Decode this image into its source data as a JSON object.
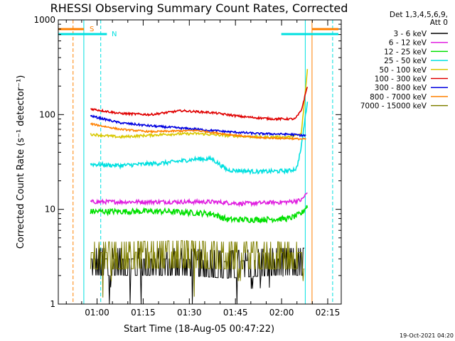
{
  "chart_data": {
    "type": "line",
    "title": "RHESSI Observing Summary Count Rates, Corrected",
    "xlabel": "Start Time (18-Aug-05 00:47:22)",
    "ylabel": "Corrected Count Rate (s⁻¹ detector⁻¹)",
    "yscale": "log",
    "ylim": [
      1,
      1000
    ],
    "xlim_minutes_after_start": [
      0,
      92
    ],
    "xticks": [
      {
        "label": "01:00",
        "min": 12.6
      },
      {
        "label": "01:15",
        "min": 27.6
      },
      {
        "label": "01:30",
        "min": 42.6
      },
      {
        "label": "01:45",
        "min": 57.6
      },
      {
        "label": "02:00",
        "min": 72.6
      },
      {
        "label": "02:15",
        "min": 87.6
      }
    ],
    "yticks": [
      {
        "label": "1",
        "value": 1
      },
      {
        "label": "10",
        "value": 10
      },
      {
        "label": "100",
        "value": 100
      },
      {
        "label": "1000",
        "value": 1000
      }
    ],
    "legend_title": [
      "Det 1,3,4,5,6,9,",
      "Att 0"
    ],
    "legend": [
      {
        "label": "3 - 6 keV",
        "color": "#000000"
      },
      {
        "label": "6 - 12 keV",
        "color": "#e020e0"
      },
      {
        "label": "12 - 25 keV",
        "color": "#00e000"
      },
      {
        "label": "25 - 50 keV",
        "color": "#00e0e0"
      },
      {
        "label": "50 - 100 keV",
        "color": "#d8c800"
      },
      {
        "label": "100 - 300 keV",
        "color": "#e00000"
      },
      {
        "label": "300 - 800 keV",
        "color": "#0000e0"
      },
      {
        "label": "800 - 7000 keV",
        "color": "#ff8000"
      },
      {
        "label": "7000 - 15000 keV",
        "color": "#808000"
      }
    ],
    "flags": [
      {
        "label": "S",
        "color": "#ff8000"
      },
      {
        "label": "N",
        "color": "#00e0e0"
      }
    ],
    "series": [
      {
        "name": "3 - 6 keV",
        "color": "#000000",
        "noise": 0.45,
        "points": [
          [
            10.5,
            3
          ],
          [
            20,
            3
          ],
          [
            40,
            3
          ],
          [
            55,
            2.8
          ],
          [
            70,
            3
          ],
          [
            80,
            3
          ]
        ]
      },
      {
        "name": "6 - 12 keV",
        "color": "#e020e0",
        "noise": 0.05,
        "points": [
          [
            10.5,
            12
          ],
          [
            20,
            12
          ],
          [
            40,
            12
          ],
          [
            50,
            12
          ],
          [
            60,
            11.5
          ],
          [
            75,
            12
          ],
          [
            79,
            12.5
          ],
          [
            81,
            15
          ]
        ]
      },
      {
        "name": "12 - 25 keV",
        "color": "#00e000",
        "noise": 0.07,
        "points": [
          [
            10.5,
            9.5
          ],
          [
            20,
            9.5
          ],
          [
            35,
            9.5
          ],
          [
            50,
            9
          ],
          [
            55,
            7.8
          ],
          [
            65,
            7.8
          ],
          [
            75,
            8
          ],
          [
            79,
            9
          ],
          [
            81,
            11
          ]
        ]
      },
      {
        "name": "25 - 50 keV",
        "color": "#00e0e0",
        "noise": 0.05,
        "points": [
          [
            10.5,
            30
          ],
          [
            20,
            29
          ],
          [
            35,
            31
          ],
          [
            45,
            34
          ],
          [
            50,
            34
          ],
          [
            55,
            26
          ],
          [
            65,
            25
          ],
          [
            75,
            25.5
          ],
          [
            77.5,
            27
          ],
          [
            79,
            45
          ],
          [
            81,
            140
          ]
        ]
      },
      {
        "name": "50 - 100 keV",
        "color": "#d8c800",
        "noise": 0.03,
        "points": [
          [
            10.5,
            62
          ],
          [
            20,
            58
          ],
          [
            35,
            62
          ],
          [
            45,
            63
          ],
          [
            55,
            60
          ],
          [
            65,
            58
          ],
          [
            75,
            58
          ],
          [
            79,
            62
          ],
          [
            81,
            300
          ]
        ]
      },
      {
        "name": "100 - 300 keV",
        "color": "#e00000",
        "noise": 0.025,
        "points": [
          [
            10.5,
            115
          ],
          [
            20,
            103
          ],
          [
            30,
            100
          ],
          [
            40,
            110
          ],
          [
            50,
            105
          ],
          [
            60,
            95
          ],
          [
            70,
            90
          ],
          [
            77,
            90
          ],
          [
            79,
            110
          ],
          [
            81,
            200
          ]
        ]
      },
      {
        "name": "300 - 800 keV",
        "color": "#0000e0",
        "noise": 0.025,
        "points": [
          [
            10.5,
            97
          ],
          [
            20,
            82
          ],
          [
            30,
            76
          ],
          [
            45,
            70
          ],
          [
            55,
            66
          ],
          [
            65,
            63
          ],
          [
            75,
            62
          ],
          [
            80.5,
            60
          ]
        ]
      },
      {
        "name": "800 - 7000 keV",
        "color": "#ff8000",
        "noise": 0.02,
        "points": [
          [
            10.5,
            80
          ],
          [
            20,
            70
          ],
          [
            30,
            66
          ],
          [
            45,
            68
          ],
          [
            55,
            62
          ],
          [
            65,
            57
          ],
          [
            75,
            56
          ],
          [
            80.5,
            55
          ]
        ]
      },
      {
        "name": "7000 - 15000 keV",
        "color": "#808000",
        "noise": 0.4,
        "points": [
          [
            10.5,
            3.5
          ],
          [
            20,
            3.5
          ],
          [
            40,
            3.6
          ],
          [
            55,
            3.5
          ],
          [
            70,
            3.5
          ],
          [
            80,
            3.5
          ]
        ]
      }
    ],
    "footer_date": "19-Oct-2021 04:20"
  }
}
